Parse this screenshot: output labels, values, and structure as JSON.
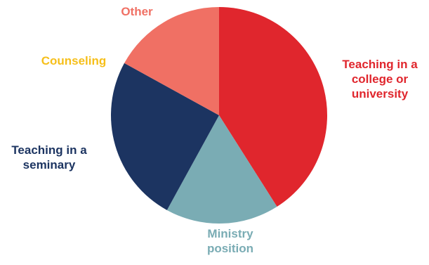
{
  "chart_data": {
    "type": "pie",
    "slices": [
      {
        "label": "Teaching in a college or university",
        "label_lines": [
          "Teaching in a",
          "college or",
          "university"
        ],
        "value": 41,
        "color": "#e0262d",
        "label_position": "right"
      },
      {
        "label": "Ministry position",
        "label_lines": [
          "Ministry",
          "position"
        ],
        "value": 17,
        "color": "#7aacb4",
        "label_position": "bottom"
      },
      {
        "label": "Teaching in a seminary",
        "label_lines": [
          "Teaching in a",
          "seminary"
        ],
        "value": 25,
        "color": "#1c3461",
        "label_position": "left"
      },
      {
        "label": "Counseling",
        "label_lines": [
          "Counseling"
        ],
        "value": 0,
        "color": "#f6bf1a",
        "label_position": "upper-left"
      },
      {
        "label": "Other",
        "label_lines": [
          "Other"
        ],
        "value": 17,
        "color": "#f07064",
        "label_position": "top"
      }
    ],
    "start_angle": "top",
    "direction": "clockwise",
    "legend": "none"
  }
}
